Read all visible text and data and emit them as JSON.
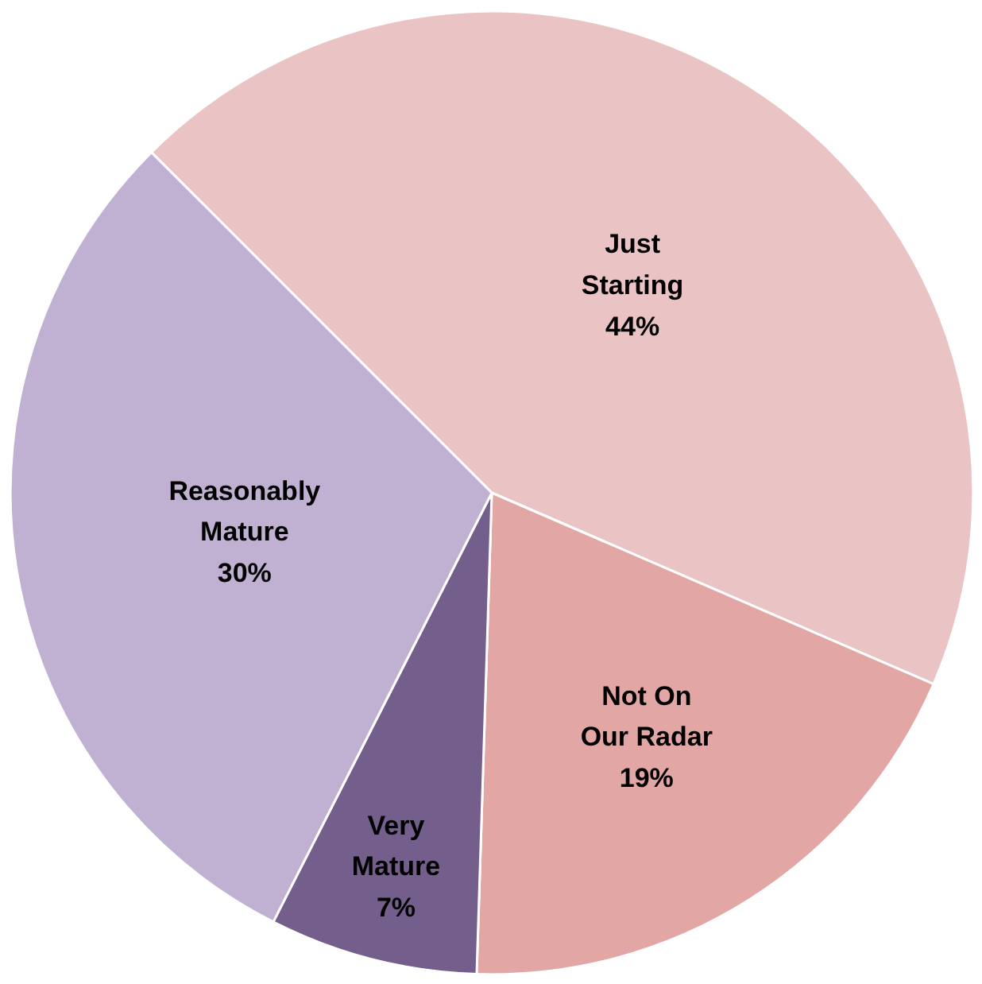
{
  "chart_data": {
    "type": "pie",
    "categories": [
      "Just Starting",
      "Not On Our Radar",
      "Very Mature",
      "Reasonably Mature"
    ],
    "values": [
      44,
      19,
      7,
      30
    ],
    "colors": [
      "#eac4c4",
      "#e2a6a4",
      "#745e8c",
      "#c0b1d2"
    ],
    "value_labels": [
      "44%",
      "19%",
      "7%",
      "30%"
    ]
  }
}
